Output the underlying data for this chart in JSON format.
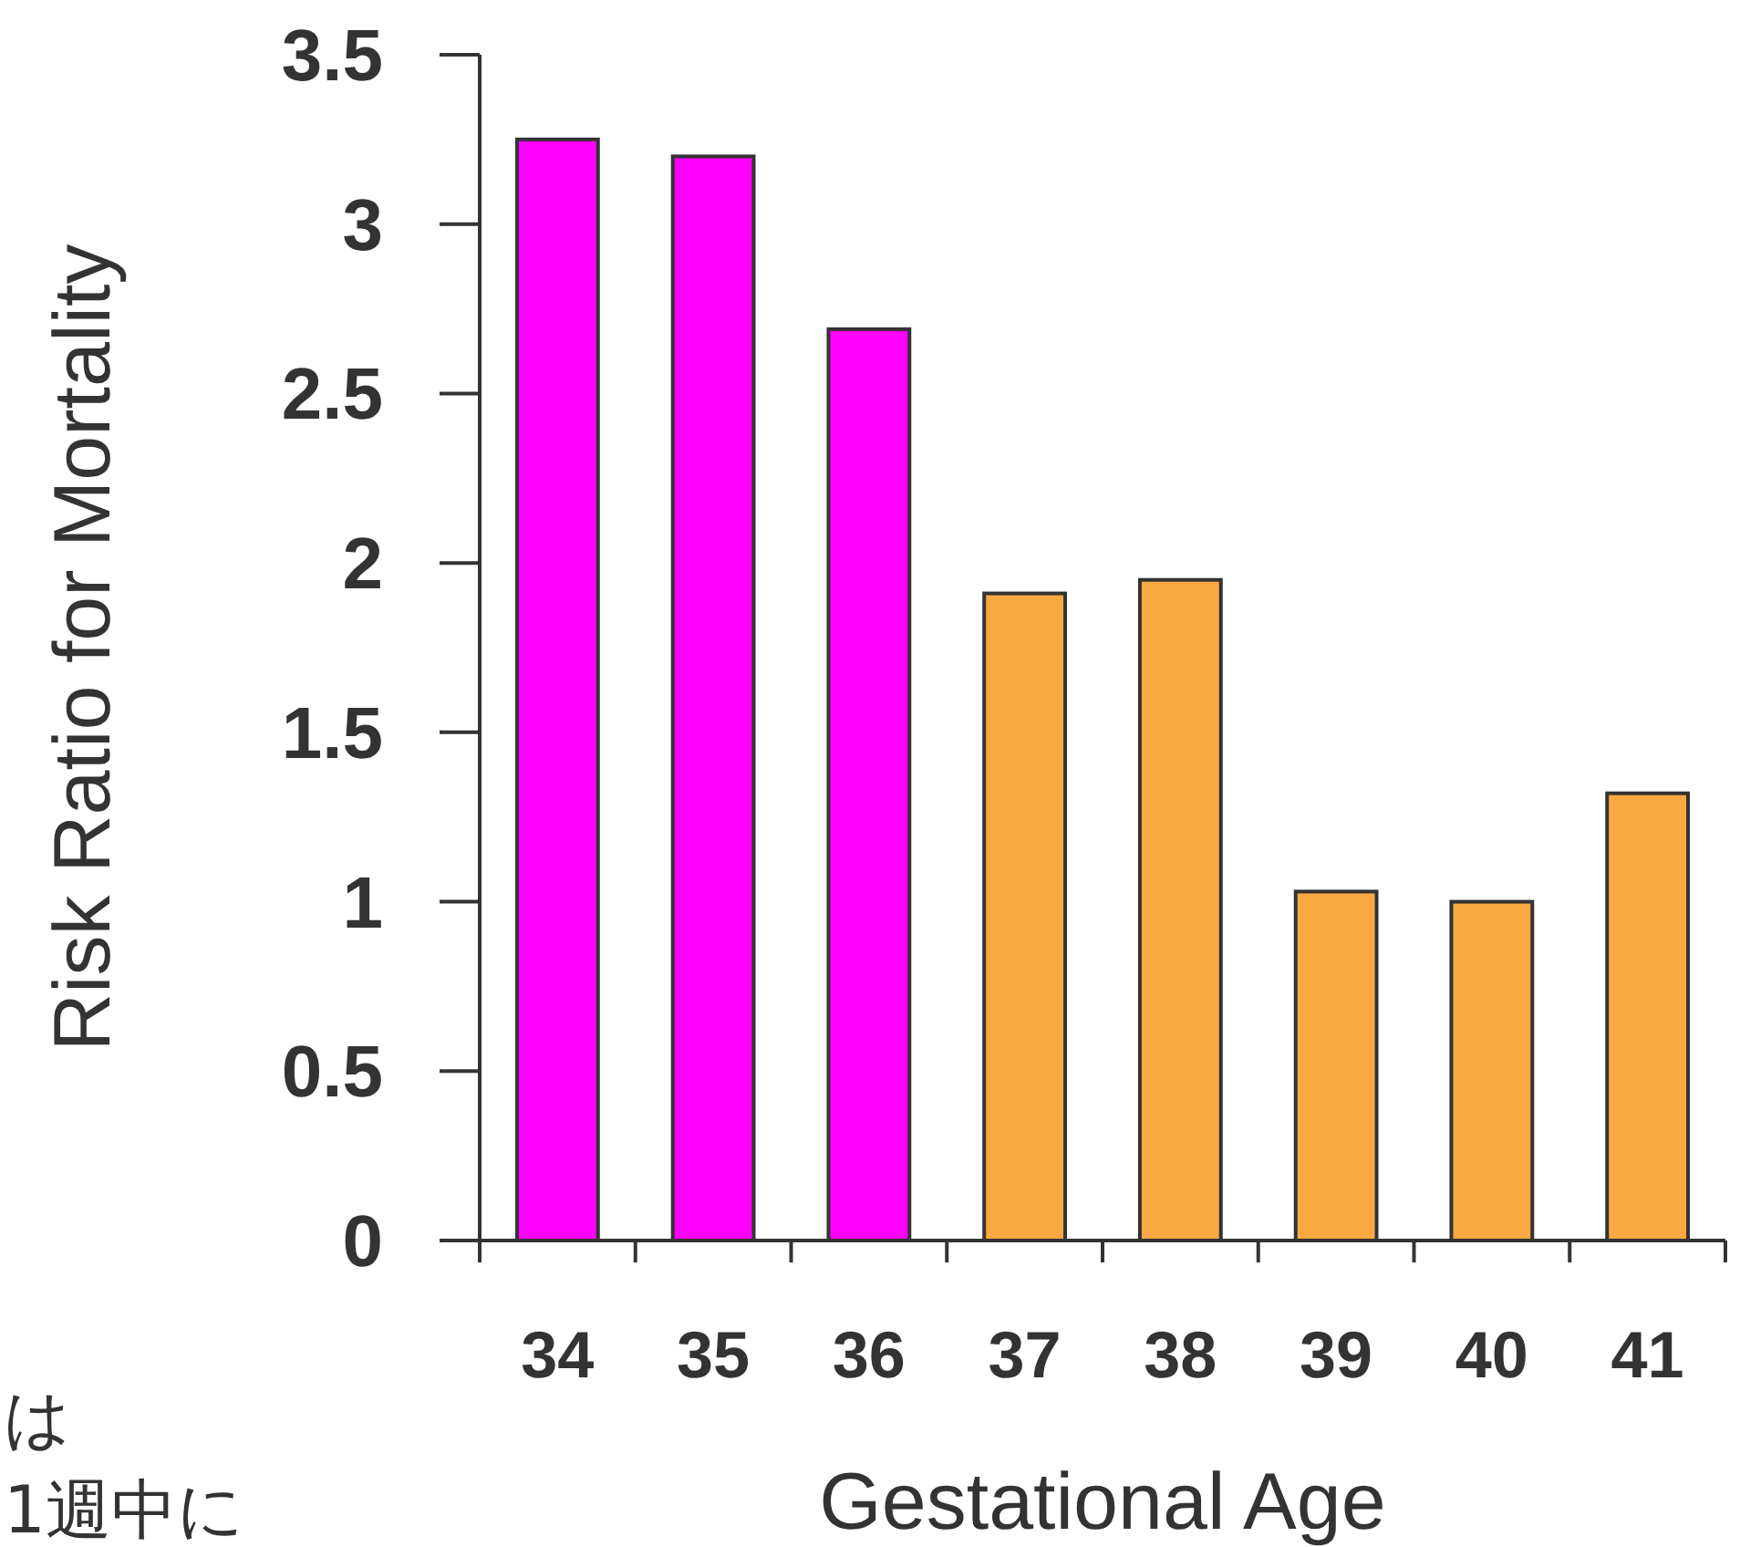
{
  "chart_data": {
    "type": "bar",
    "xlabel": "Gestational Age",
    "ylabel": "Risk Ratio for Mortality",
    "categories": [
      "34",
      "35",
      "36",
      "37",
      "38",
      "39",
      "40",
      "41"
    ],
    "values": [
      3.25,
      3.2,
      2.69,
      1.91,
      1.95,
      1.03,
      1.0,
      1.32
    ],
    "colors": [
      "#ff00ff",
      "#ff00ff",
      "#ff00ff",
      "#f9a942",
      "#f9a942",
      "#f9a942",
      "#f9a942",
      "#f9a942"
    ],
    "ylim": [
      0,
      3.5
    ],
    "yticks": [
      0,
      0.5,
      1,
      1.5,
      2,
      2.5,
      3,
      3.5
    ],
    "annotations": [
      "は",
      "1週中に"
    ]
  }
}
